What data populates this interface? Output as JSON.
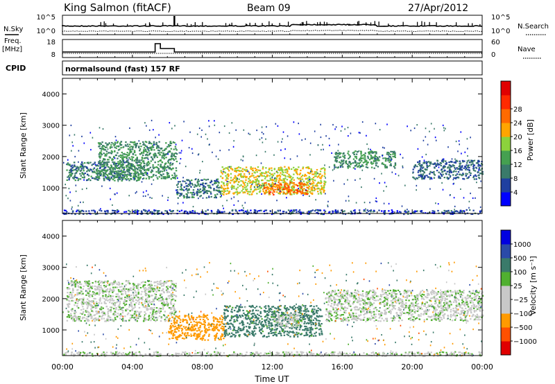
{
  "header": {
    "site": "King Salmon (fitACF)",
    "beam": "Beam 09",
    "date": "27/Apr/2012"
  },
  "nsky_panel": {
    "left_label": "N.Sky",
    "right_label": "N.Search",
    "left_ticks": [
      "10^5",
      "10^0"
    ],
    "right_ticks": [
      "10^5",
      "10^0"
    ]
  },
  "freq_panel": {
    "left_label_1": "Freq.",
    "left_label_2": "[MHz]",
    "right_label": "Nave",
    "left_ticks": [
      "18",
      "8"
    ],
    "right_ticks": [
      "60",
      "0"
    ]
  },
  "cpid": {
    "label": "CPID",
    "text": "normalsound (fast) 157 RF"
  },
  "axes": {
    "xlabel": "Time UT",
    "ylabel": "Slant Range [km]",
    "x_ticks": [
      "00:00",
      "04:00",
      "08:00",
      "12:00",
      "16:00",
      "20:00",
      "00:00"
    ],
    "y_ticks": [
      "1000",
      "2000",
      "3000",
      "4000"
    ]
  },
  "colors": {
    "power": [
      "#0000ff",
      "#1f3fa0",
      "#3a7a6a",
      "#45a050",
      "#8cd23c",
      "#ffa500",
      "#ff6a00",
      "#ff2a00",
      "#e00000"
    ],
    "velocity": [
      "#e00000",
      "#ff5000",
      "#ff9a00",
      "#c8c8c8",
      "#c8c8c8",
      "#50b030",
      "#3a7a6a",
      "#2a4aa8",
      "#0000e0"
    ]
  },
  "chart_data": [
    {
      "type": "heatmap",
      "name": "power",
      "xlim": [
        0,
        24
      ],
      "ylim": [
        180,
        4500
      ],
      "colorbar_label": "Power [dB]",
      "colorbar_ticks": [
        "4",
        "8",
        "12",
        "16",
        "20",
        "24",
        "28"
      ],
      "colorbar_range": [
        0,
        30
      ],
      "regions": [
        {
          "x": [
            0.2,
            4.5
          ],
          "y": [
            1250,
            1850
          ],
          "value": 10
        },
        {
          "x": [
            2.0,
            6.5
          ],
          "y": [
            1300,
            2500
          ],
          "value": 12
        },
        {
          "x": [
            6.5,
            9.0
          ],
          "y": [
            700,
            1300
          ],
          "value": 10
        },
        {
          "x": [
            9.0,
            15.0
          ],
          "y": [
            800,
            1700
          ],
          "value": 20
        },
        {
          "x": [
            11.5,
            14.0
          ],
          "y": [
            800,
            1200
          ],
          "value": 26
        },
        {
          "x": [
            15.5,
            19.0
          ],
          "y": [
            1650,
            2200
          ],
          "value": 12
        },
        {
          "x": [
            20.0,
            24.0
          ],
          "y": [
            1300,
            1900
          ],
          "value": 8
        },
        {
          "x": [
            0.0,
            24.0
          ],
          "y": [
            180,
            320
          ],
          "value": 6
        }
      ]
    },
    {
      "type": "heatmap",
      "name": "velocity",
      "xlim": [
        0,
        24
      ],
      "ylim": [
        180,
        4500
      ],
      "colorbar_label": "Velocity [m s⁻¹]",
      "colorbar_ticks": [
        "1000",
        "500",
        "100",
        "25",
        "−25",
        "−100",
        "−500",
        "−1000"
      ],
      "colorbar_range": [
        -1000,
        1000
      ],
      "regions": [
        {
          "x": [
            0.2,
            6.5
          ],
          "y": [
            1300,
            2600
          ],
          "value": 0
        },
        {
          "x": [
            6.0,
            9.2
          ],
          "y": [
            700,
            1500
          ],
          "value": -300
        },
        {
          "x": [
            9.2,
            14.8
          ],
          "y": [
            800,
            1800
          ],
          "value": 150
        },
        {
          "x": [
            12.0,
            13.5
          ],
          "y": [
            1100,
            1600
          ],
          "value": 0
        },
        {
          "x": [
            15.0,
            24.0
          ],
          "y": [
            1300,
            2300
          ],
          "value": 0
        },
        {
          "x": [
            0.0,
            24.0
          ],
          "y": [
            180,
            320
          ],
          "value": 0
        }
      ]
    }
  ]
}
